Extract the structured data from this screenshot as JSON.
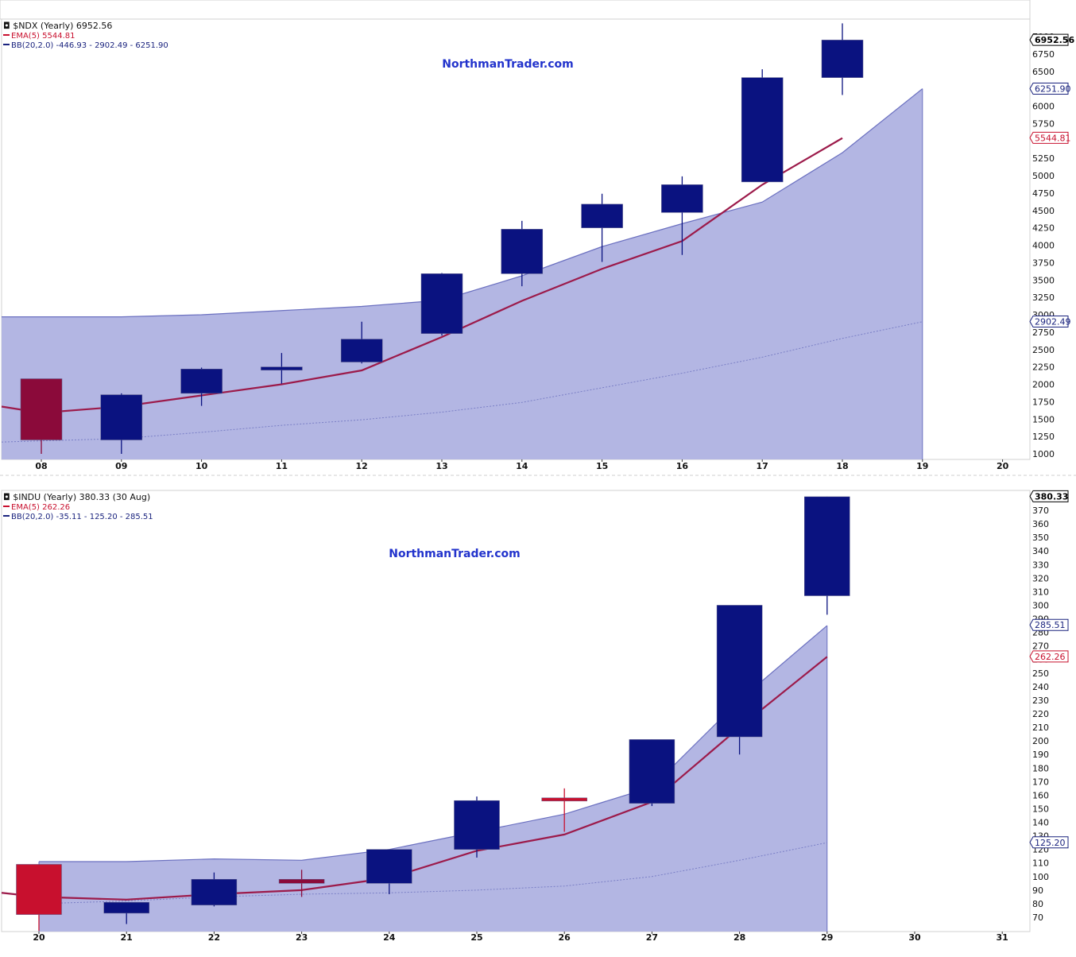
{
  "chart_data": [
    {
      "type": "candlestick",
      "symbol": "$NDX (Yearly) 6952.56",
      "watermark": "NorthmanTrader.com",
      "legend": [
        {
          "text": "EMA(5) 5544.81",
          "color": "#c8102e"
        },
        {
          "text": "BB(20,2.0) -446.93 - 2902.49 - 6251.90",
          "color": "#1a237e"
        }
      ],
      "x": [
        "08",
        "09",
        "10",
        "11",
        "12",
        "13",
        "14",
        "15",
        "16",
        "17",
        "18",
        "19",
        "20"
      ],
      "ylim": [
        950,
        7300
      ],
      "yticks": [
        1000,
        1250,
        1500,
        1750,
        2000,
        2250,
        2500,
        2750,
        3000,
        3250,
        3500,
        3750,
        4000,
        4250,
        4500,
        4750,
        5000,
        5250,
        5750,
        6000,
        6500,
        6750,
        7000
      ],
      "last_labels": [
        {
          "value": 6952.56,
          "text": "6952.56",
          "color": "#000000"
        },
        {
          "value": 6251.9,
          "text": "6251.90",
          "color": "#1a237e"
        },
        {
          "value": 5544.81,
          "text": "5544.81",
          "color": "#c8102e"
        },
        {
          "value": 2902.49,
          "text": "2902.49",
          "color": "#1a237e"
        }
      ],
      "candles": [
        {
          "open": 2080,
          "high": 2080,
          "low": 1000,
          "close": 1200,
          "color": "#8b0a3a"
        },
        {
          "open": 1200,
          "high": 1870,
          "low": 1000,
          "close": 1850,
          "color": "#0a1280"
        },
        {
          "open": 1870,
          "high": 2240,
          "low": 1690,
          "close": 2220,
          "color": "#0a1280"
        },
        {
          "open": 2220,
          "high": 2450,
          "low": 2010,
          "close": 2250,
          "color": "#0a1280"
        },
        {
          "open": 2320,
          "high": 2900,
          "low": 2300,
          "close": 2650,
          "color": "#0a1280"
        },
        {
          "open": 2730,
          "high": 3600,
          "low": 2700,
          "close": 3590,
          "color": "#0a1280"
        },
        {
          "open": 3590,
          "high": 4350,
          "low": 3410,
          "close": 4230,
          "color": "#0a1280"
        },
        {
          "open": 4250,
          "high": 4740,
          "low": 3760,
          "close": 4590,
          "color": "#0a1280"
        },
        {
          "open": 4470,
          "high": 4990,
          "low": 3860,
          "close": 4870,
          "color": "#0a1280"
        },
        {
          "open": 4910,
          "high": 6530,
          "low": 4910,
          "close": 6410,
          "color": "#0a1280"
        },
        {
          "open": 6410,
          "high": 7190,
          "low": 6160,
          "close": 6950,
          "color": "#0a1280"
        }
      ],
      "ema": [
        1680,
        1590,
        1680,
        1840,
        2000,
        2200,
        2680,
        3200,
        3660,
        4060,
        4870,
        5540
      ],
      "bb_upper": [
        2970,
        2970,
        3000,
        3060,
        3120,
        3210,
        3560,
        3980,
        4310,
        4620,
        5330,
        6250
      ],
      "bb_middle": [
        1170,
        1220,
        1310,
        1410,
        1490,
        1600,
        1740,
        1950,
        2160,
        2390,
        2660,
        2900
      ]
    },
    {
      "type": "candlestick",
      "symbol": "$INDU (Yearly) 380.33 (30 Aug)",
      "watermark": "NorthmanTrader.com",
      "legend": [
        {
          "text": "EMA(5) 262.26",
          "color": "#c8102e"
        },
        {
          "text": "BB(20,2.0) -35.11 - 125.20 - 285.51",
          "color": "#1a237e"
        }
      ],
      "x": [
        "20",
        "21",
        "22",
        "23",
        "24",
        "25",
        "26",
        "27",
        "28",
        "29",
        "30",
        "31"
      ],
      "ylim": [
        60,
        382
      ],
      "yticks": [
        70,
        80,
        90,
        100,
        110,
        120,
        130,
        140,
        150,
        160,
        170,
        180,
        190,
        200,
        210,
        220,
        230,
        240,
        250,
        260,
        270,
        280,
        290,
        300,
        310,
        320,
        330,
        340,
        350,
        360,
        370
      ],
      "last_labels": [
        {
          "value": 380.33,
          "text": "380.33",
          "color": "#000000"
        },
        {
          "value": 285.51,
          "text": "285.51",
          "color": "#1a237e"
        },
        {
          "value": 262.26,
          "text": "262.26",
          "color": "#c8102e"
        },
        {
          "value": 125.2,
          "text": "125.20",
          "color": "#1a237e"
        }
      ],
      "candles": [
        {
          "open": 109,
          "high": 109,
          "low": 60,
          "close": 72,
          "color": "#c8102e"
        },
        {
          "open": 81,
          "high": 81,
          "low": 65,
          "close": 73,
          "color": "#0a1280"
        },
        {
          "open": 79,
          "high": 103,
          "low": 78,
          "close": 98,
          "color": "#0a1280"
        },
        {
          "open": 98,
          "high": 105,
          "low": 85,
          "close": 95,
          "color": "#8b0a3a"
        },
        {
          "open": 95,
          "high": 120,
          "low": 87,
          "close": 120,
          "color": "#0a1280"
        },
        {
          "open": 120,
          "high": 159,
          "low": 114,
          "close": 156,
          "color": "#0a1280"
        },
        {
          "open": 158,
          "high": 165,
          "low": 133,
          "close": 157,
          "color": "#c8102e"
        },
        {
          "open": 154,
          "high": 201,
          "low": 152,
          "close": 201,
          "color": "#0a1280"
        },
        {
          "open": 203,
          "high": 300,
          "low": 190,
          "close": 300,
          "color": "#0a1280"
        },
        {
          "open": 307,
          "high": 380,
          "low": 293,
          "close": 380,
          "color": "#0a1280"
        }
      ],
      "ema": [
        88,
        85,
        83,
        87,
        90,
        99,
        119,
        131,
        155,
        210,
        262
      ],
      "bb_upper": [
        111,
        111,
        113,
        112,
        120,
        133,
        146,
        166,
        230,
        285
      ],
      "bb_middle": [
        80,
        82,
        85,
        87,
        88,
        90,
        93,
        100,
        112,
        125
      ]
    }
  ]
}
